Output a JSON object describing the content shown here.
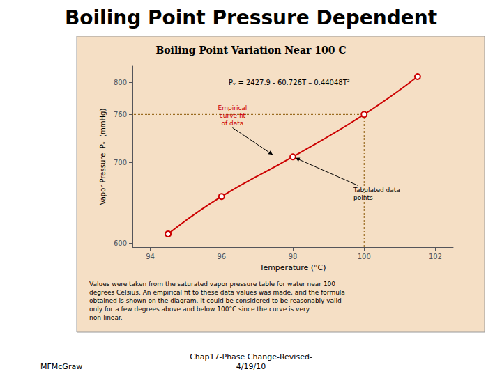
{
  "chart_data": {
    "type": "line",
    "title": "Boiling Point Pressure Dependent",
    "subtitle": "Boiling Point Variation Near 100 C",
    "x": [
      94.5,
      96,
      98,
      100,
      101.5
    ],
    "values": [
      611.5,
      658.0,
      707.3,
      760.0,
      807.0
    ],
    "color": "#cc0000",
    "marker": "circle",
    "line_style": "solid",
    "xlabel": "Temperature (°C)",
    "ylabel": "Vapor Pressure  Pᵥ  (mmHg)",
    "xlim": [
      93.5,
      102.5
    ],
    "ylim": [
      595,
      820
    ],
    "xticks": [
      94,
      96,
      98,
      100,
      102
    ],
    "yticks": [
      600,
      700,
      760,
      800
    ],
    "grid": false,
    "equation": "Pᵥ = 2427.9 - 60.726T – 0.44048T²",
    "annotations": [
      {
        "text": "Empirical\ncurve fit\nof data",
        "x": 97.5,
        "y": 708,
        "color": "#cc0000"
      },
      {
        "text": "Tabulated data\npoints",
        "x": 98.0,
        "y": 707.3
      }
    ],
    "reference_lines": {
      "x": 100,
      "y": 760
    },
    "caption": "Values were taken from the saturated vapor pressure table for water near 100\ndegrees Celsius. An empirical fit to these data values was made, and the formula\nobtained is shown on the diagram. It could be considered to be reasonably valid\nonly for a few degrees above and below 100°C since the curve is very\nnon-linear.",
    "footer": [
      "MFMcGraw",
      "Chap17-Phase Change-Revised-\n4/19/10"
    ]
  }
}
